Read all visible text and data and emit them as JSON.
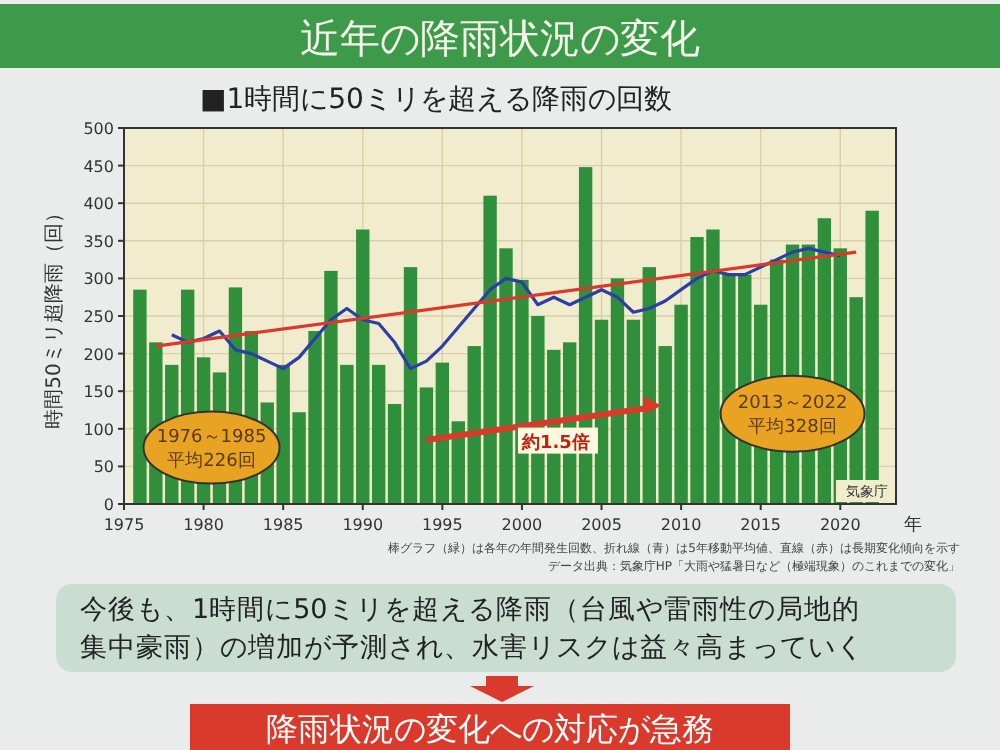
{
  "chart_data": {
    "type": "bar",
    "title": "近年の降雨状況の変化",
    "subtitle": "■1時間に50ミリを超える降雨の回数",
    "ylabel": "時間50ミリ超降雨（回）",
    "xlabel": "年",
    "x": [
      1976,
      1977,
      1978,
      1979,
      1980,
      1981,
      1982,
      1983,
      1984,
      1985,
      1986,
      1987,
      1988,
      1989,
      1990,
      1991,
      1992,
      1993,
      1994,
      1995,
      1996,
      1997,
      1998,
      1999,
      2000,
      2001,
      2002,
      2003,
      2004,
      2005,
      2006,
      2007,
      2008,
      2009,
      2010,
      2011,
      2012,
      2013,
      2014,
      2015,
      2016,
      2017,
      2018,
      2019,
      2020,
      2021,
      2022
    ],
    "series": [
      {
        "color": "#2f8f3a",
        "values": [
          285,
          215,
          185,
          285,
          195,
          175,
          288,
          230,
          135,
          185,
          122,
          230,
          310,
          185,
          365,
          185,
          133,
          315,
          155,
          188,
          110,
          210,
          410,
          340,
          298,
          250,
          205,
          215,
          448,
          245,
          300,
          245,
          315,
          210,
          265,
          355,
          365,
          305,
          305,
          265,
          325,
          345,
          345,
          380,
          340,
          275,
          390
        ]
      },
      {
        "type": "line",
        "color": "#2b3fa8",
        "x": [
          1978,
          1979,
          1980,
          1981,
          1982,
          1983,
          1984,
          1985,
          1986,
          1987,
          1988,
          1989,
          1990,
          1991,
          1992,
          1993,
          1994,
          1995,
          1996,
          1997,
          1998,
          1999,
          2000,
          2001,
          2002,
          2003,
          2004,
          2005,
          2006,
          2007,
          2008,
          2009,
          2010,
          2011,
          2012,
          2013,
          2014,
          2015,
          2016,
          2017,
          2018,
          2019,
          2020
        ],
        "values": [
          225,
          215,
          220,
          230,
          205,
          200,
          190,
          180,
          195,
          220,
          245,
          260,
          245,
          240,
          215,
          180,
          190,
          210,
          235,
          260,
          285,
          300,
          295,
          265,
          275,
          265,
          275,
          285,
          275,
          255,
          260,
          270,
          285,
          300,
          310,
          305,
          305,
          315,
          325,
          335,
          340,
          335,
          330
        ]
      },
      {
        "type": "line",
        "color": "#d93a2b",
        "x": [
          1977,
          2021
        ],
        "values": [
          210,
          335
        ]
      }
    ],
    "xlim": [
      1975,
      2023.5
    ],
    "xticks": [
      1975,
      1980,
      1985,
      1990,
      1995,
      2000,
      2005,
      2010,
      2015,
      2020
    ],
    "ylim": [
      0,
      500
    ],
    "yticks": [
      0,
      50,
      100,
      150,
      200,
      250,
      300,
      350,
      400,
      450,
      500
    ],
    "grid": true,
    "annotations": [
      "1976～1985\n平均226回",
      "2013～2022\n平均328回",
      "約1.5倍",
      "気象庁",
      "棒グラフ（緑）は各年の年間発生回数、折れ線（青）は5年移動平均値、直線（赤）は長期変化傾向を示す",
      "データ出典：気象庁HP「大雨や猛暑日など（極端現象）のこれまでの変化」",
      "今後も、1時間に50ミリを超える降雨（台風や雷雨性の局地的",
      "集中豪雨）の増加が予測され、水害リスクは益々高まっていく",
      "降雨状況の変化への対応が急務"
    ]
  }
}
